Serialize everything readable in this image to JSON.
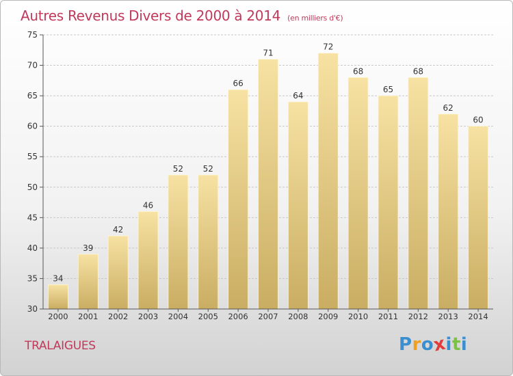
{
  "title": {
    "main": "Autres Revenus Divers de 2000 à 2014",
    "unit": "(en milliers d'€)"
  },
  "location": "TRALAIGUES",
  "logo": {
    "letters": [
      "P",
      "r",
      "o",
      "x",
      "i",
      "t",
      "i"
    ],
    "colors": [
      "#3a8fd0",
      "#f0a020",
      "#3a8fd0",
      "#e23c3c",
      "#3a8fd0",
      "#7cc242",
      "#3a8fd0"
    ]
  },
  "colors": {
    "title": "#c0395a",
    "bar_light": "#f7e2a3",
    "bar_dark": "#c9ad62",
    "grid": "#c8c8c8",
    "axis": "#555555"
  },
  "chart_data": {
    "type": "bar",
    "categories": [
      "2000",
      "2001",
      "2002",
      "2003",
      "2004",
      "2005",
      "2006",
      "2007",
      "2008",
      "2009",
      "2010",
      "2011",
      "2012",
      "2013",
      "2014"
    ],
    "values": [
      34,
      39,
      42,
      46,
      52,
      52,
      66,
      71,
      64,
      72,
      68,
      65,
      68,
      62,
      60
    ],
    "title": "Autres Revenus Divers de 2000 à 2014",
    "xlabel": "",
    "ylabel": "",
    "ylim": [
      30,
      75
    ],
    "yticks": [
      30,
      35,
      40,
      45,
      50,
      55,
      60,
      65,
      70,
      75
    ],
    "grid": true
  }
}
